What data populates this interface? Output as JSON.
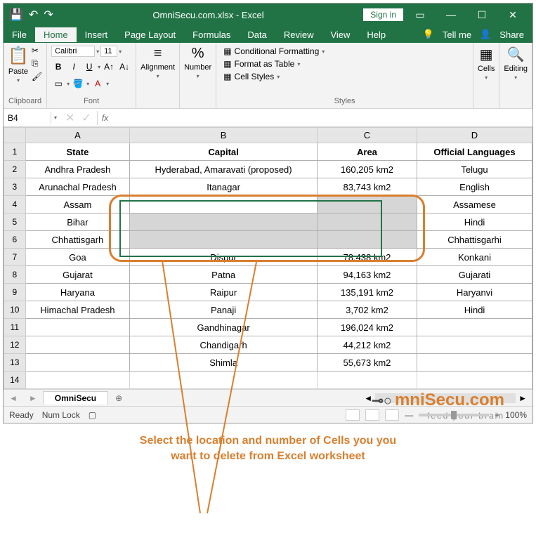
{
  "titlebar": {
    "title": "OmniSecu.com.xlsx - Excel",
    "signin": "Sign in"
  },
  "tabs": {
    "items": [
      "File",
      "Home",
      "Insert",
      "Page Layout",
      "Formulas",
      "Data",
      "Review",
      "View",
      "Help"
    ],
    "active": 1,
    "tellme": "Tell me",
    "share": "Share"
  },
  "ribbon": {
    "clipboard": {
      "label": "Clipboard",
      "paste": "Paste"
    },
    "font": {
      "label": "Font",
      "name": "Calibri",
      "size": "11"
    },
    "alignment": {
      "label": "Alignment"
    },
    "number": {
      "label": "Number"
    },
    "styles": {
      "label": "Styles",
      "conditional": "Conditional Formatting",
      "table": "Format as Table",
      "cell": "Cell Styles"
    },
    "cells": {
      "label": "Cells"
    },
    "editing": {
      "label": "Editing"
    }
  },
  "namebox": {
    "value": "B4",
    "fx": "fx"
  },
  "columns": [
    "A",
    "B",
    "C",
    "D"
  ],
  "rows": [
    {
      "r": "1",
      "a": "State",
      "b": "Capital",
      "c": "Area",
      "d": "Official Languages"
    },
    {
      "r": "2",
      "a": "Andhra Pradesh",
      "b": "Hyderabad, Amaravati (proposed)",
      "c": "160,205 km2",
      "d": "Telugu"
    },
    {
      "r": "3",
      "a": "Arunachal Pradesh",
      "b": "Itanagar",
      "c": "83,743 km2",
      "d": "English"
    },
    {
      "r": "4",
      "a": "Assam",
      "b": "",
      "c": "",
      "d": "Assamese"
    },
    {
      "r": "5",
      "a": "Bihar",
      "b": "",
      "c": "",
      "d": "Hindi"
    },
    {
      "r": "6",
      "a": "Chhattisgarh",
      "b": "",
      "c": "",
      "d": "Chhattisgarhi"
    },
    {
      "r": "7",
      "a": "Goa",
      "b": "Dispur",
      "c": "78,438 km2",
      "d": "Konkani"
    },
    {
      "r": "8",
      "a": "Gujarat",
      "b": "Patna",
      "c": "94,163 km2",
      "d": "Gujarati"
    },
    {
      "r": "9",
      "a": "Haryana",
      "b": "Raipur",
      "c": "135,191 km2",
      "d": "Haryanvi"
    },
    {
      "r": "10",
      "a": "Himachal Pradesh",
      "b": "Panaji",
      "c": "3,702 km2",
      "d": "Hindi"
    },
    {
      "r": "11",
      "a": "",
      "b": "Gandhinagar",
      "c": "196,024 km2",
      "d": ""
    },
    {
      "r": "12",
      "a": "",
      "b": "Chandigarh",
      "c": "44,212 km2",
      "d": ""
    },
    {
      "r": "13",
      "a": "",
      "b": "Shimla",
      "c": "55,673 km2",
      "d": ""
    },
    {
      "r": "14",
      "a": "",
      "b": "",
      "c": "",
      "d": ""
    }
  ],
  "sheet": {
    "name": "OmniSecu"
  },
  "statusbar": {
    "ready": "Ready",
    "numlock": "Num Lock",
    "zoom": "100%"
  },
  "watermark": {
    "main": "mniSecu.com",
    "sub": "feed your brain"
  },
  "annotation": {
    "text1": "Select the location and number of Cells you you",
    "text2": "want to delete from Excel worksheet"
  },
  "colors": {
    "excel_green": "#217346",
    "annotation": "#d97f2e"
  }
}
